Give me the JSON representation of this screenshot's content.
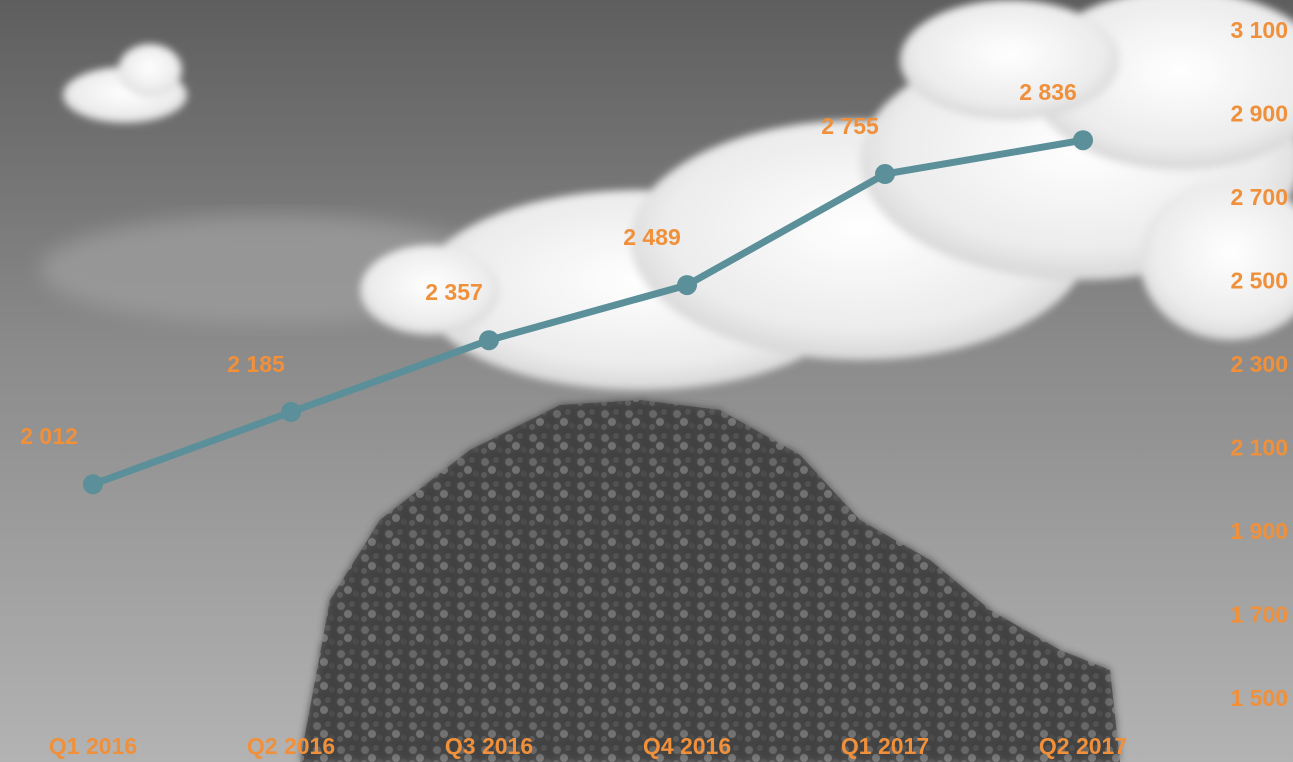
{
  "chart_data": {
    "type": "line",
    "categories": [
      "Q1 2016",
      "Q2 2016",
      "Q3 2016",
      "Q4 2016",
      "Q1 2017",
      "Q2 2017"
    ],
    "values": [
      2012,
      2185,
      2357,
      2489,
      2755,
      2836
    ],
    "data_labels": [
      "2 012",
      "2 185",
      "2 357",
      "2 489",
      "2 755",
      "2 836"
    ],
    "y_ticks": [
      1500,
      1700,
      1900,
      2100,
      2300,
      2500,
      2700,
      2900,
      3100
    ],
    "y_tick_labels": [
      "1 500",
      "1 700",
      "1 900",
      "2 100",
      "2 300",
      "2 500",
      "2 700",
      "2 900",
      "3 100"
    ],
    "ylim": [
      1500,
      3100
    ],
    "y_axis_position": "right",
    "grid": false,
    "legend": false,
    "colors": {
      "line": "#5b8f99",
      "labels": "#f0903a"
    }
  }
}
